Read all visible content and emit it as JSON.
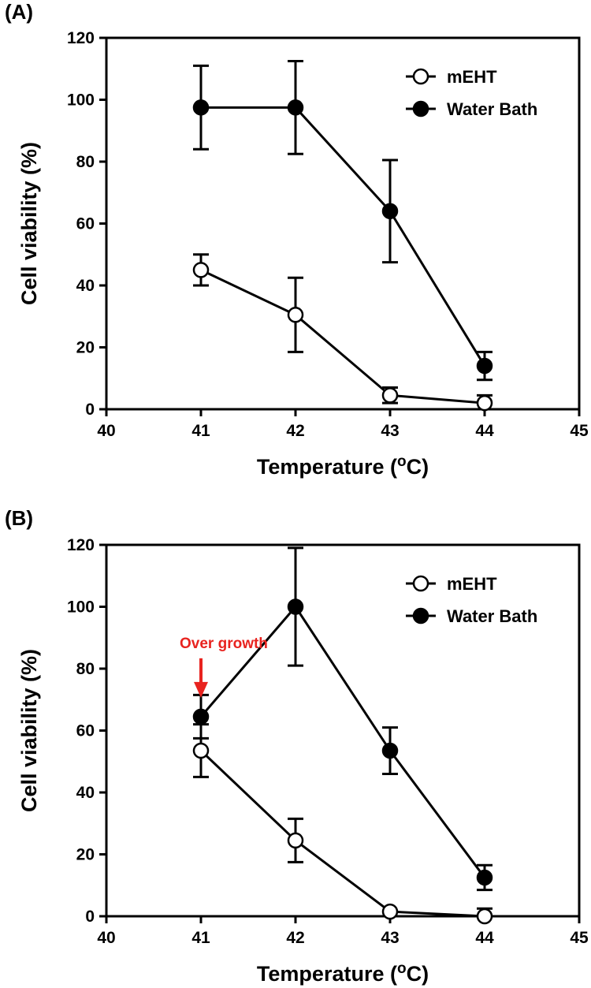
{
  "chart_data": [
    {
      "panel": "(A)",
      "type": "line",
      "xlabel": "Temperature (",
      "xlabel_sup": "o",
      "xlabel_end": "C)",
      "ylabel": "Cell viability (%)",
      "xlim": [
        40,
        45
      ],
      "ylim": [
        0,
        120
      ],
      "xticks": [
        "40",
        "41",
        "42",
        "43",
        "44",
        "45"
      ],
      "yticks": [
        "0",
        "20",
        "40",
        "60",
        "80",
        "100",
        "120"
      ],
      "grid": false,
      "legend_position": "top-right",
      "series": [
        {
          "name": "mEHT",
          "marker": "open-circle",
          "color": "#000000",
          "x": [
            41,
            42,
            43,
            44
          ],
          "values": [
            45,
            30.5,
            4.5,
            2
          ],
          "errors": [
            5,
            12,
            2.5,
            2.5
          ]
        },
        {
          "name": "Water Bath",
          "marker": "filled-circle",
          "color": "#000000",
          "x": [
            41,
            42,
            43,
            44
          ],
          "values": [
            97.5,
            97.5,
            64,
            14
          ],
          "errors": [
            13.5,
            15,
            16.5,
            4.5
          ]
        }
      ],
      "annotations": []
    },
    {
      "panel": "(B)",
      "type": "line",
      "xlabel": "Temperature (",
      "xlabel_sup": "o",
      "xlabel_end": "C)",
      "ylabel": "Cell viability (%)",
      "xlim": [
        40,
        45
      ],
      "ylim": [
        0,
        120
      ],
      "xticks": [
        "40",
        "41",
        "42",
        "43",
        "44",
        "45"
      ],
      "yticks": [
        "0",
        "20",
        "40",
        "60",
        "80",
        "100",
        "120"
      ],
      "grid": false,
      "legend_position": "top-right",
      "series": [
        {
          "name": "mEHT",
          "marker": "open-circle",
          "color": "#000000",
          "x": [
            41,
            42,
            43,
            44
          ],
          "values": [
            53.5,
            24.5,
            1.5,
            0
          ],
          "errors": [
            8.5,
            7,
            0,
            2.5
          ]
        },
        {
          "name": "Water Bath",
          "marker": "filled-circle",
          "color": "#000000",
          "x": [
            41,
            42,
            43,
            44
          ],
          "values": [
            64.5,
            100,
            53.5,
            12.5
          ],
          "errors": [
            7,
            19,
            7.5,
            4
          ]
        }
      ],
      "annotations": [
        {
          "text": "Over growth",
          "x": 41,
          "y": 64.5,
          "color": "#e8231f"
        }
      ]
    }
  ]
}
